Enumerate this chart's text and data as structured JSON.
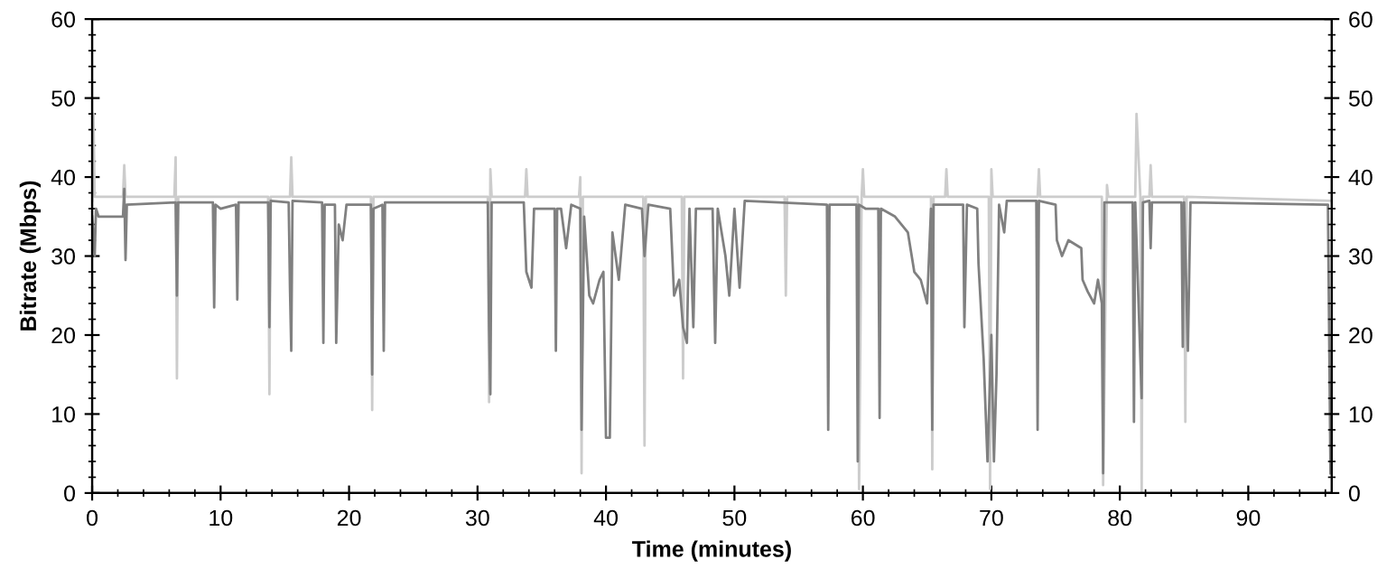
{
  "chart_data": {
    "type": "line",
    "xlabel": "Time (minutes)",
    "ylabel": "Bitrate (Mbps)",
    "xlim": [
      0,
      96.5
    ],
    "xticks": [
      0,
      10,
      20,
      30,
      40,
      50,
      60,
      70,
      80,
      90
    ],
    "ylim": [
      0,
      60
    ],
    "yticks": [
      0,
      10,
      20,
      30,
      40,
      50,
      60
    ],
    "y2lim": [
      0,
      60
    ],
    "y2ticks": [
      0,
      10,
      20,
      30,
      40,
      50,
      60
    ],
    "grid": false,
    "legend": false,
    "marker": "none",
    "line_style": "solid",
    "series": [
      {
        "color": "#cccccc",
        "x": [
          0,
          0.1,
          0.2,
          2.4,
          2.5,
          2.6,
          6.4,
          6.5,
          6.6,
          6.7,
          13.7,
          13.8,
          13.9,
          15.4,
          15.5,
          15.6,
          21.7,
          21.8,
          21.9,
          30.8,
          30.9,
          31,
          31.1,
          33.7,
          33.8,
          33.9,
          37.9,
          38,
          38.1,
          38.2,
          42.9,
          43,
          43.1,
          45.9,
          46,
          46.1,
          53.9,
          54,
          54.1,
          59.6,
          59.7,
          59.9,
          60,
          60.1,
          65.3,
          65.4,
          65.5,
          66.4,
          66.5,
          66.6,
          69.8,
          69.9,
          70,
          70.1,
          73.6,
          73.7,
          73.8,
          78.6,
          78.7,
          79,
          79.1,
          81.2,
          81.3,
          81.6,
          81.7,
          81.8,
          82.3,
          82.4,
          82.5,
          85,
          85.1,
          85.2,
          96.5
        ],
        "values": [
          37,
          48,
          37.5,
          37.5,
          41.5,
          37.5,
          37.5,
          42.5,
          14.5,
          37.5,
          37.5,
          12.5,
          37.5,
          37.5,
          42.5,
          37.5,
          37.5,
          10.5,
          37.5,
          37.5,
          11.5,
          41,
          37.5,
          37.5,
          41,
          37.5,
          37.5,
          40,
          2.5,
          37.5,
          37.5,
          6,
          37.5,
          37.5,
          14.5,
          37.5,
          37.5,
          25,
          37.5,
          37.5,
          0.5,
          37.5,
          41,
          37.5,
          37.5,
          3,
          37.5,
          37.5,
          41,
          37.5,
          37.5,
          0.5,
          41,
          37.5,
          37.5,
          41,
          37.5,
          37.5,
          1,
          39,
          37.5,
          37.5,
          48,
          37.5,
          0,
          37.5,
          37.5,
          41.5,
          37.5,
          37.5,
          9,
          37.5,
          37
        ]
      },
      {
        "color": "#808080",
        "x": [
          0,
          0.2,
          0.3,
          0.5,
          2.4,
          2.5,
          2.6,
          2.7,
          6.5,
          6.6,
          6.7,
          9.4,
          9.5,
          9.6,
          10,
          11.2,
          11.3,
          11.4,
          13.7,
          13.8,
          13.9,
          15.3,
          15.4,
          15.5,
          15.6,
          17.9,
          18,
          18.1,
          18.9,
          19,
          19.2,
          19.5,
          19.8,
          21.7,
          21.8,
          21.9,
          22.6,
          22.7,
          22.8,
          30.8,
          30.9,
          31,
          31.1,
          33.6,
          33.8,
          34.2,
          34.4,
          36,
          36.1,
          36.2,
          36.5,
          36.9,
          37.3,
          38,
          38.1,
          38.3,
          38.7,
          39,
          39.5,
          39.8,
          40,
          40.3,
          40.5,
          41,
          41.5,
          42.8,
          43,
          43.3,
          45,
          45.3,
          45.7,
          46,
          46.3,
          46.5,
          46.8,
          47,
          48.3,
          48.5,
          48.7,
          49.3,
          49.6,
          50,
          50.4,
          50.8,
          57.2,
          57.3,
          57.4,
          59.5,
          59.6,
          59.7,
          60.2,
          61.2,
          61.3,
          61.4,
          62.5,
          63.5,
          64,
          64.5,
          65,
          65.3,
          65.4,
          65.5,
          67.8,
          67.9,
          68.1,
          68.9,
          69,
          69.4,
          69.7,
          70,
          70.2,
          70.4,
          70.6,
          71,
          71.2,
          73.5,
          73.6,
          73.7,
          75,
          75.1,
          75.5,
          76,
          77,
          77.1,
          77.5,
          78,
          78.3,
          78.6,
          78.7,
          78.8,
          81,
          81.1,
          81.2,
          81.7,
          81.8,
          82.3,
          82.4,
          82.5,
          84.8,
          84.9,
          85,
          85.3,
          85.5,
          96,
          96.2,
          96.4
        ],
        "values": [
          35,
          30,
          36,
          35,
          35,
          38.5,
          29.5,
          36.5,
          36.8,
          25,
          36.8,
          36.8,
          23.5,
          36.5,
          36,
          36.5,
          24.5,
          36.8,
          36.8,
          21,
          37,
          36.8,
          26,
          18,
          37,
          36.8,
          19,
          36.5,
          36.5,
          19,
          34,
          32,
          36.5,
          36.5,
          15,
          36,
          36.5,
          18,
          36.8,
          36.8,
          21,
          12.5,
          36.8,
          36.8,
          28,
          26,
          36,
          36,
          18,
          36,
          36,
          31,
          36.5,
          36,
          8,
          35,
          25,
          24,
          27,
          28,
          7,
          7,
          33,
          27,
          36.5,
          36,
          30,
          36.5,
          36,
          25,
          27,
          21,
          19,
          36,
          21,
          36,
          36,
          19,
          36,
          30,
          25,
          36,
          26,
          37,
          36.5,
          8,
          36.5,
          36.5,
          4,
          36.5,
          36,
          36,
          9.5,
          36,
          35,
          33,
          28,
          27,
          24,
          36,
          8,
          36.5,
          36.5,
          21,
          36.5,
          36,
          29,
          17,
          4,
          20,
          4,
          15,
          36.5,
          33,
          37,
          37,
          8,
          37,
          36.5,
          32,
          30,
          32,
          31,
          27,
          25.5,
          24,
          27,
          24,
          2.5,
          36.8,
          36.8,
          9,
          36.8,
          12,
          36.8,
          37,
          31,
          36.8,
          36.8,
          18.5,
          36.8,
          18,
          36.8,
          36.5,
          36.5,
          2.5
        ]
      }
    ]
  }
}
